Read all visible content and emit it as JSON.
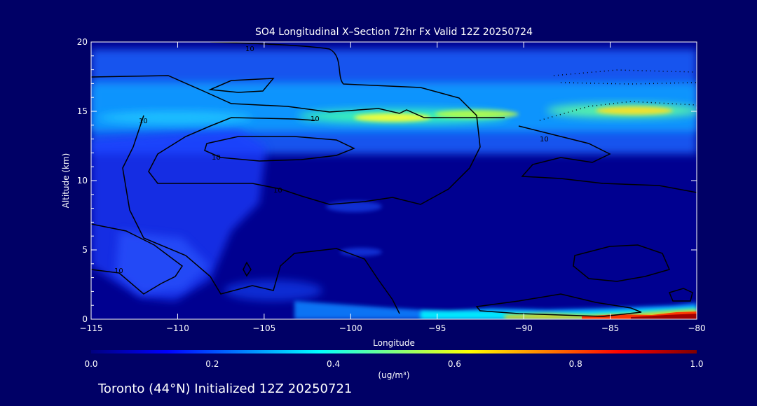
{
  "chart_data": {
    "type": "heatmap",
    "title": "SO4 Longitudinal X–Section 72hr  Fx Valid 12Z 20250724",
    "xlabel": "Longitude",
    "ylabel": "Altitude (km)",
    "xlim": [
      -115,
      -80
    ],
    "ylim": [
      0,
      20
    ],
    "x_ticks": [
      -115,
      -110,
      -105,
      -100,
      -95,
      -90,
      -85,
      -80
    ],
    "x_tick_labels": [
      "−115",
      "−110",
      "−105",
      "−100",
      "−95",
      "−90",
      "−85",
      "−80"
    ],
    "y_ticks": [
      0,
      5,
      10,
      15,
      20
    ],
    "y_tick_labels": [
      "0",
      "5",
      "10",
      "15",
      "20"
    ],
    "colorbar": {
      "min": 0.0,
      "max": 1.0,
      "ticks": [
        0.0,
        0.2,
        0.4,
        0.6,
        0.8,
        1.0
      ],
      "tick_labels": [
        "0.0",
        "0.2",
        "0.4",
        "0.6",
        "0.8",
        "1.0"
      ],
      "units_label": "(ug/m³)",
      "colormap": "jet",
      "stops": [
        "#00007f",
        "#0000ff",
        "#0080ff",
        "#00ffff",
        "#80ff80",
        "#ffff00",
        "#ff8000",
        "#ff0000",
        "#7f0000"
      ]
    },
    "features": [
      {
        "name": "upper-layer",
        "lon": [
          -115,
          -80
        ],
        "alt": [
          14.0,
          16.0
        ],
        "value": 0.3
      },
      {
        "name": "tropopause-band",
        "lon": [
          -99,
          -90
        ],
        "alt": [
          14.3,
          15.0
        ],
        "value": 0.55
      },
      {
        "name": "tropopause-band-east",
        "lon": [
          -88,
          -81
        ],
        "alt": [
          14.6,
          15.3
        ],
        "value": 0.58
      },
      {
        "name": "upper-west-band",
        "lon": [
          -115,
          -100
        ],
        "alt": [
          14.0,
          15.2
        ],
        "value": 0.4
      },
      {
        "name": "surface-layer-east",
        "lon": [
          -95,
          -80
        ],
        "alt": [
          0.0,
          0.6
        ],
        "value": 0.4
      },
      {
        "name": "surface-max",
        "lon": [
          -88,
          -80
        ],
        "alt": [
          0.0,
          0.4
        ],
        "value": 1.0
      }
    ],
    "contour_levels": [
      10
    ],
    "contour_labels": [
      "10",
      "10",
      "10",
      "10",
      "10",
      "10",
      "10"
    ]
  },
  "footer": {
    "text": "Toronto (44°N) Initialized 12Z 20250721"
  }
}
